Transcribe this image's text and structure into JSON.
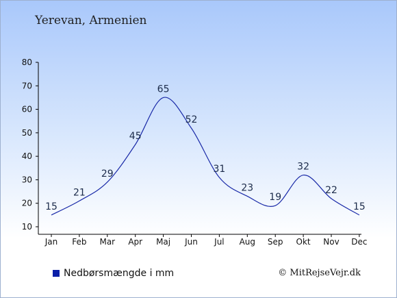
{
  "title": "Yerevan, Armenien",
  "legend_label": "Nedbørsmængde i mm",
  "credit": "© MitRejseVejr.dk",
  "colors": {
    "line": "#1a2aa8",
    "axis": "#000000",
    "legend_swatch": "#0b1fa8"
  },
  "chart_data": {
    "type": "line",
    "categories": [
      "Jan",
      "Feb",
      "Mar",
      "Apr",
      "Maj",
      "Jun",
      "Jul",
      "Aug",
      "Sep",
      "Okt",
      "Nov",
      "Dec"
    ],
    "series": [
      {
        "name": "Nedbørsmængde i mm",
        "values": [
          15,
          21,
          29,
          45,
          65,
          52,
          31,
          23,
          19,
          32,
          22,
          15
        ]
      }
    ],
    "ylim": [
      10,
      80
    ],
    "yticks": [
      10,
      20,
      30,
      40,
      50,
      60,
      70,
      80
    ],
    "data_labels": true,
    "grid": false,
    "legend_position": "bottom-left"
  }
}
